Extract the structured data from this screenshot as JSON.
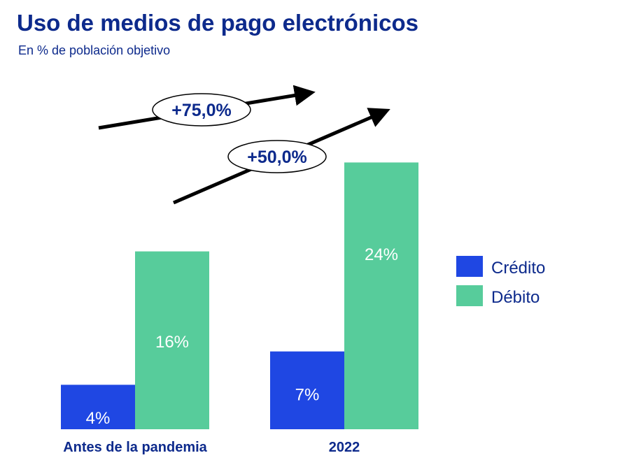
{
  "title": "Uso de medios de pago electrónicos",
  "subtitle": "En % de población objetivo",
  "chart_data": {
    "type": "bar",
    "categories": [
      "Antes de la pandemia",
      "2022"
    ],
    "series": [
      {
        "name": "Crédito",
        "values": [
          4,
          7
        ],
        "labels": [
          "4%",
          "7%"
        ],
        "color": "#1f47e3"
      },
      {
        "name": "Débito",
        "values": [
          16,
          24
        ],
        "labels": [
          "16%",
          "24%"
        ],
        "color": "#57cc9b"
      }
    ],
    "annotations": [
      {
        "text": "+75,0%",
        "series": "Crédito"
      },
      {
        "text": "+50,0%",
        "series": "Débito"
      }
    ],
    "legend_position": "right",
    "grid": false,
    "axis_visible": false
  }
}
